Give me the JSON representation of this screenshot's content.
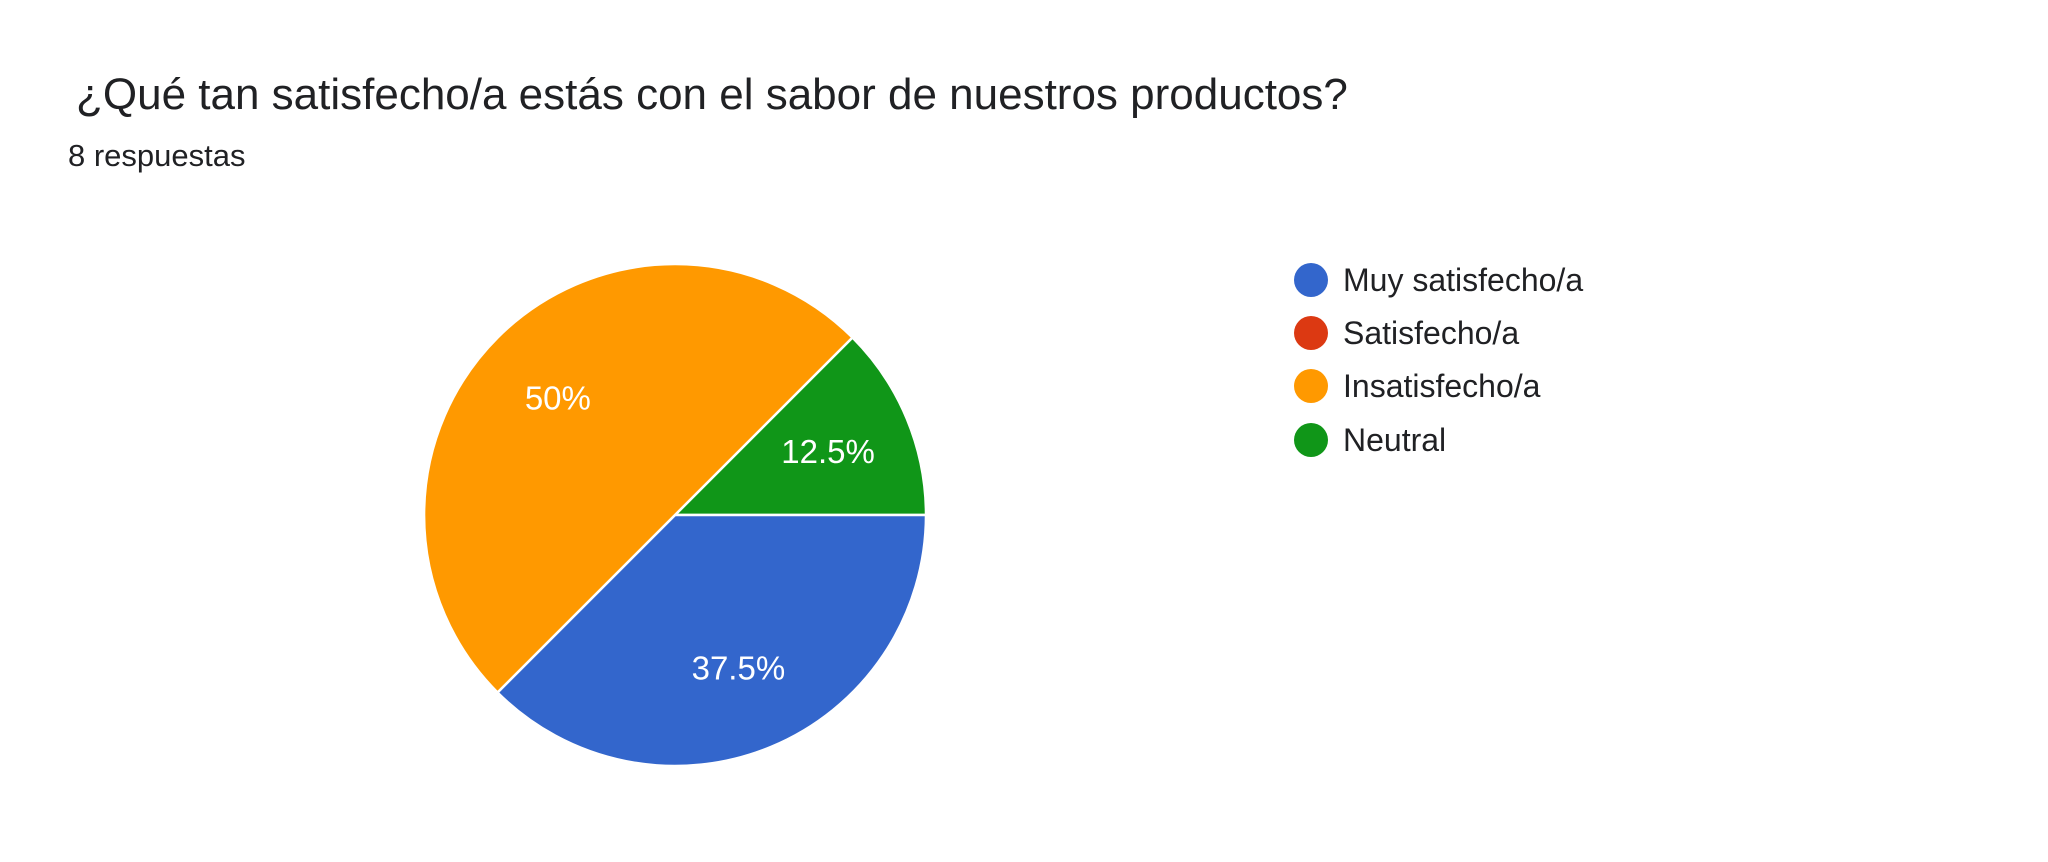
{
  "header": {
    "title": "¿Qué tan satisfecho/a estás con el sabor de nuestros productos?",
    "subtitle": "8 respuestas"
  },
  "chart_data": {
    "type": "pie",
    "title": "¿Qué tan satisfecho/a estás con el sabor de nuestros productos?",
    "total_responses": 8,
    "legend_position": "right",
    "slices": [
      {
        "label": "Muy satisfecho/a",
        "value": 3,
        "percent": 37.5,
        "percent_label": "37.5%",
        "color": "#3366CC"
      },
      {
        "label": "Satisfecho/a",
        "value": 0,
        "percent": 0,
        "percent_label": "",
        "color": "#DC3912"
      },
      {
        "label": "Insatisfecho/a",
        "value": 4,
        "percent": 50,
        "percent_label": "50%",
        "color": "#FF9900"
      },
      {
        "label": "Neutral",
        "value": 1,
        "percent": 12.5,
        "percent_label": "12.5%",
        "color": "#109618"
      }
    ]
  }
}
